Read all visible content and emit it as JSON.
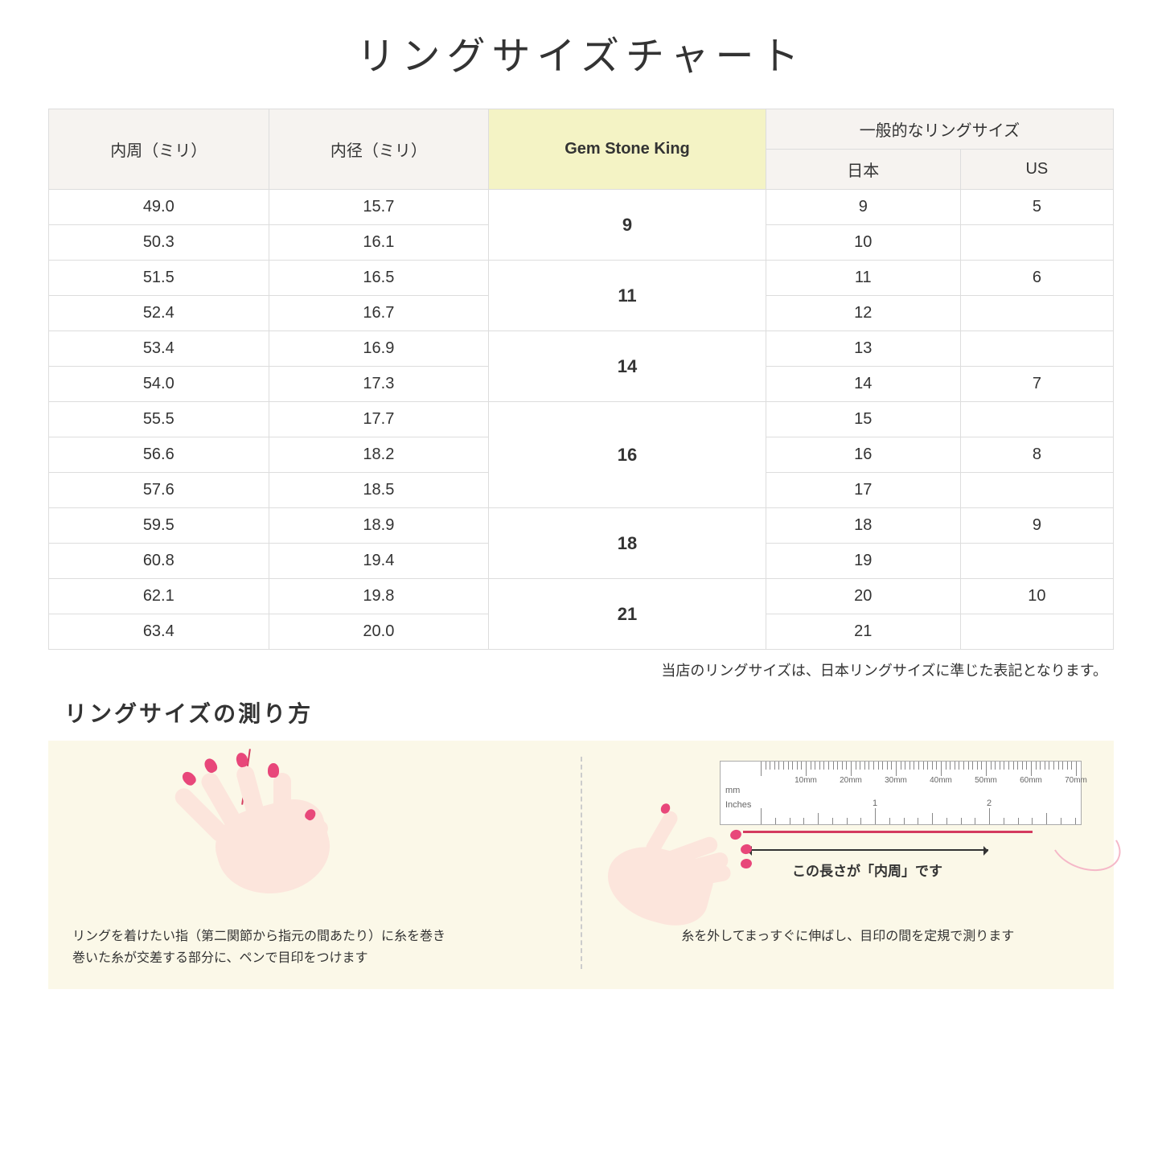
{
  "title": "リングサイズチャート",
  "headers": {
    "circumference": "内周（ミリ）",
    "diameter": "内径（ミリ）",
    "gsk": "Gem Stone King",
    "general": "一般的なリングサイズ",
    "japan": "日本",
    "us": "US"
  },
  "groups": [
    {
      "gsk": "9",
      "rows": [
        {
          "c": "49.0",
          "d": "15.7",
          "jp": "9",
          "us": "5"
        },
        {
          "c": "50.3",
          "d": "16.1",
          "jp": "10",
          "us": ""
        }
      ]
    },
    {
      "gsk": "11",
      "rows": [
        {
          "c": "51.5",
          "d": "16.5",
          "jp": "11",
          "us": "6"
        },
        {
          "c": "52.4",
          "d": "16.7",
          "jp": "12",
          "us": ""
        }
      ]
    },
    {
      "gsk": "14",
      "rows": [
        {
          "c": "53.4",
          "d": "16.9",
          "jp": "13",
          "us": ""
        },
        {
          "c": "54.0",
          "d": "17.3",
          "jp": "14",
          "us": "7"
        }
      ]
    },
    {
      "gsk": "16",
      "rows": [
        {
          "c": "55.5",
          "d": "17.7",
          "jp": "15",
          "us": ""
        },
        {
          "c": "56.6",
          "d": "18.2",
          "jp": "16",
          "us": "8"
        },
        {
          "c": "57.6",
          "d": "18.5",
          "jp": "17",
          "us": ""
        }
      ]
    },
    {
      "gsk": "18",
      "rows": [
        {
          "c": "59.5",
          "d": "18.9",
          "jp": "18",
          "us": "9"
        },
        {
          "c": "60.8",
          "d": "19.4",
          "jp": "19",
          "us": ""
        }
      ]
    },
    {
      "gsk": "21",
      "rows": [
        {
          "c": "62.1",
          "d": "19.8",
          "jp": "20",
          "us": "10"
        },
        {
          "c": "63.4",
          "d": "20.0",
          "jp": "21",
          "us": ""
        }
      ]
    }
  ],
  "note": "当店のリングサイズは、日本リングサイズに準じた表記となります。",
  "subtitle": "リングサイズの測り方",
  "instructions": {
    "left": "リングを着けたい指（第二関節から指元の間あたり）に糸を巻き\n巻いた糸が交差する部分に、ペンで目印をつけます",
    "right": "糸を外してまっすぐに伸ばし、目印の間を定規で測ります",
    "arrow_label": "この長さが「内周」です"
  },
  "ruler": {
    "mm_unit": "mm",
    "in_unit": "Inches",
    "mm_labels": [
      "10mm",
      "20mm",
      "30mm",
      "40mm",
      "50mm",
      "60mm",
      "70mm"
    ],
    "in_labels": [
      "1",
      "2"
    ]
  },
  "colors": {
    "header_bg": "#f6f3f0",
    "highlight_bg": "#f4f3c5",
    "border": "#dddddd",
    "instruction_bg": "#fbf8e8",
    "skin": "#fce5dc",
    "nail": "#e8477a",
    "thread": "#d43b5f"
  }
}
